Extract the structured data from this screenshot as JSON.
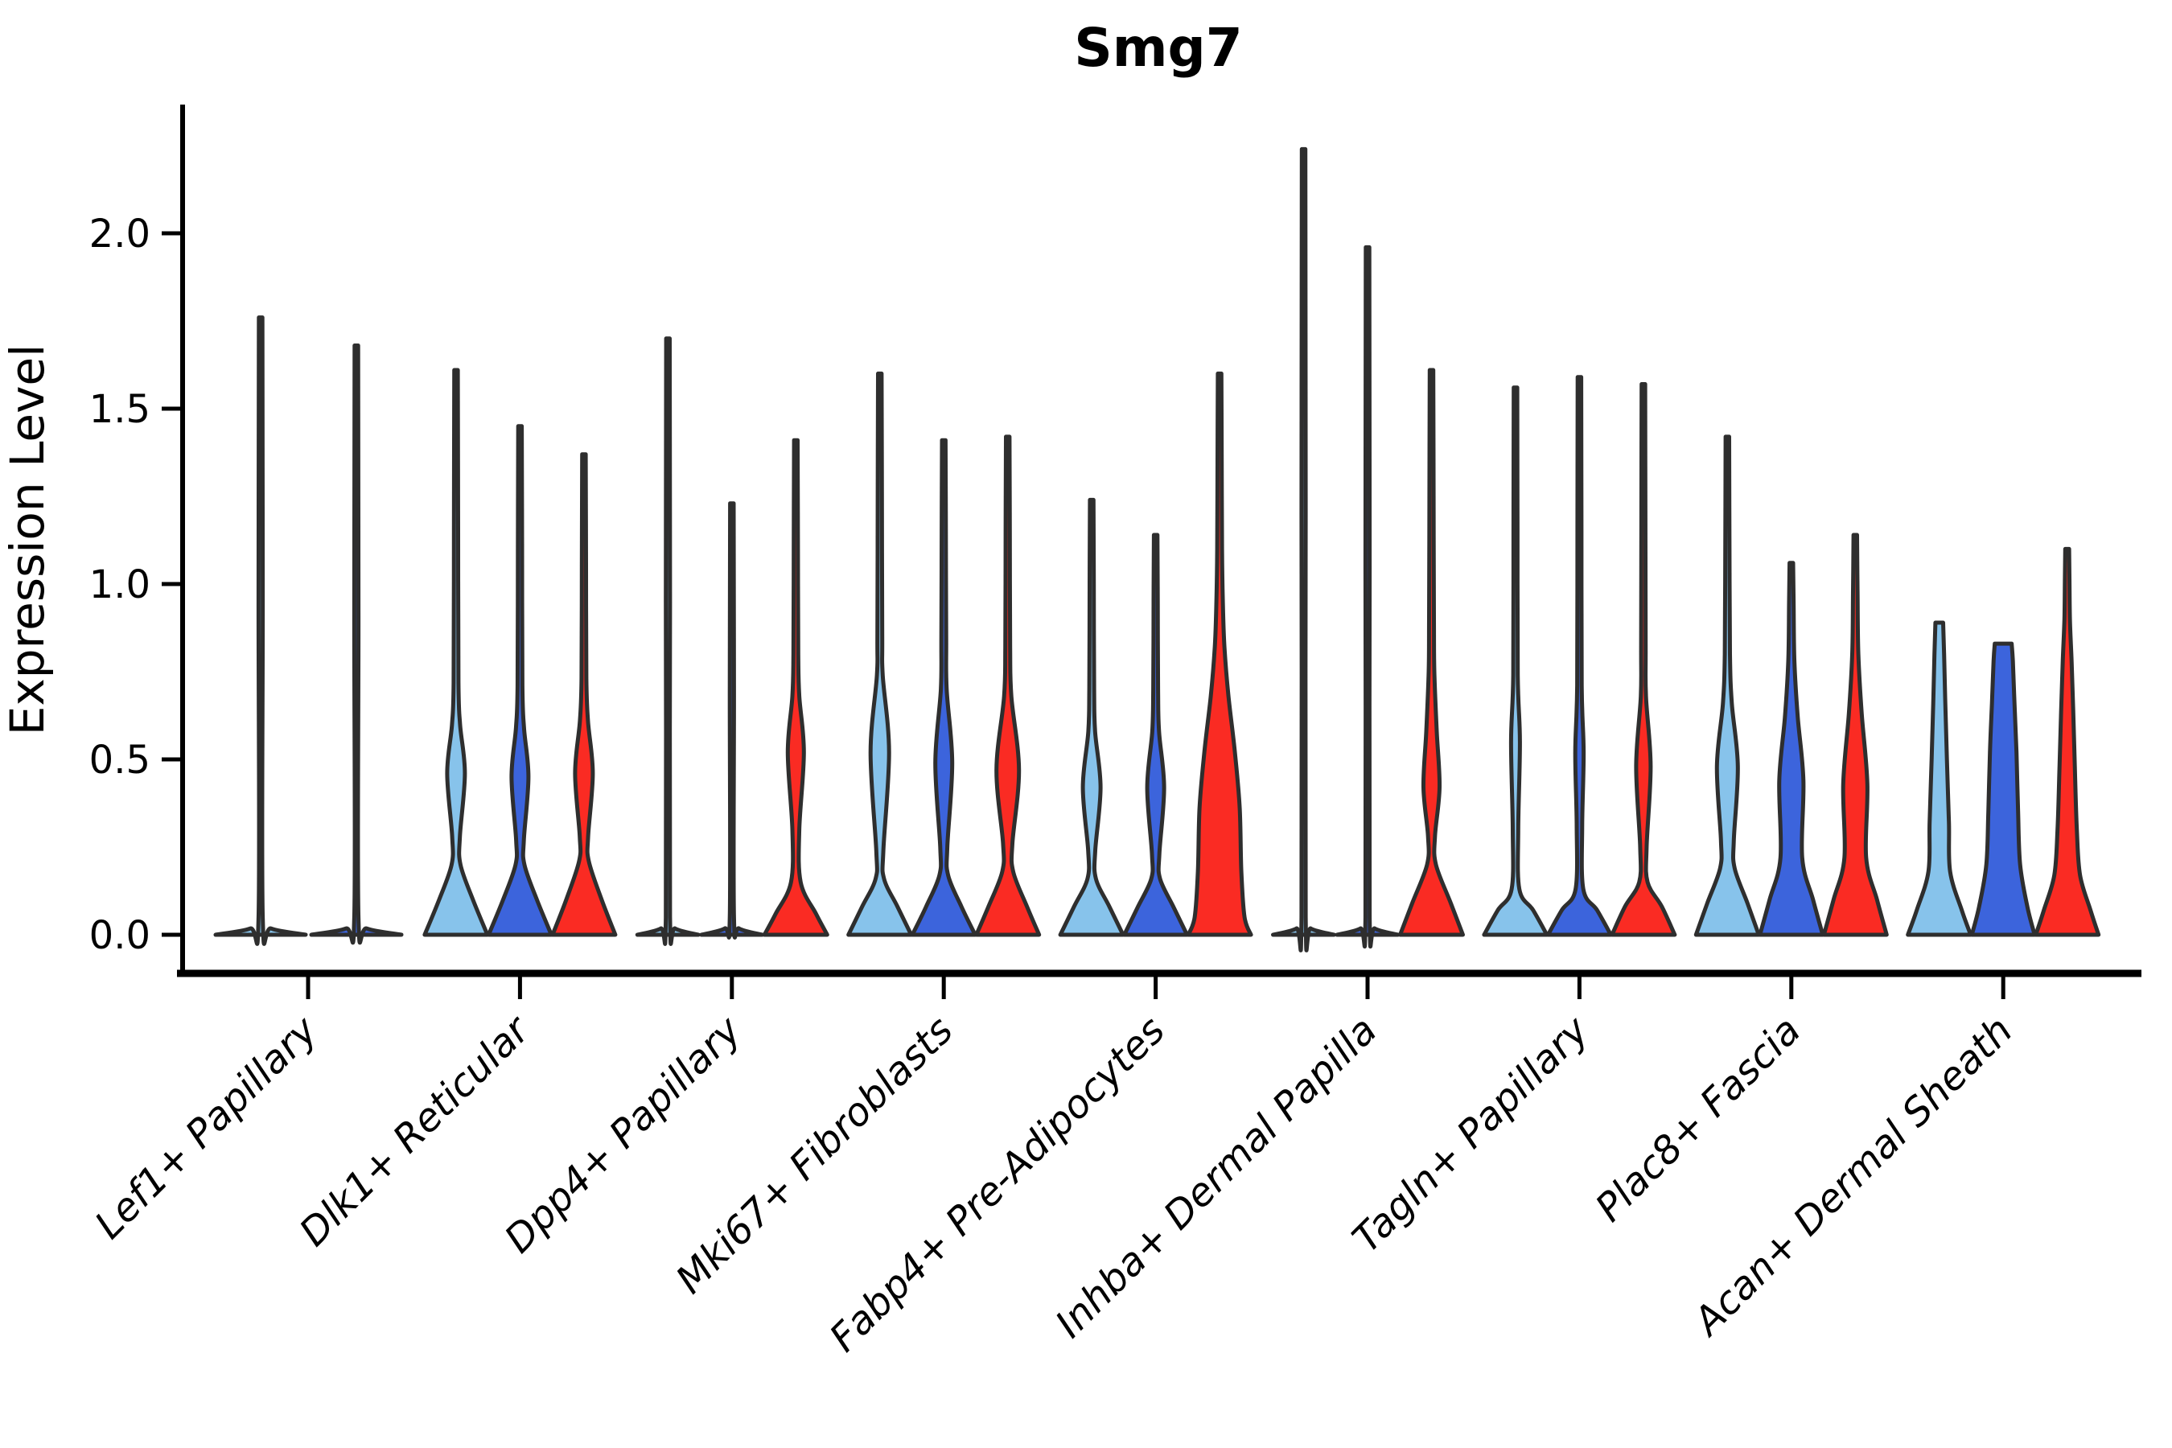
{
  "chart_data": {
    "type": "violin",
    "title": "Smg7",
    "ylabel": "Expression Level",
    "ytick_labels": [
      "0.0",
      "0.5",
      "1.0",
      "1.5",
      "2.0"
    ],
    "ytick_values": [
      0.0,
      0.5,
      1.0,
      1.5,
      2.0
    ],
    "ylim": [
      0.0,
      2.37
    ],
    "grid": "off",
    "legend": "none",
    "colors": {
      "light_blue": "#87C3EB",
      "dark_blue": "#3C64DC",
      "red": "#FA2B23",
      "outline": "#2e2e2e",
      "axis": "#000000"
    },
    "groups": [
      {
        "label": "Lef1+ Papillary",
        "violins": [
          {
            "color": "light_blue",
            "max": 1.76,
            "profile": [
              [
                0,
                56
              ],
              [
                0.018,
                13
              ],
              [
                0.05,
                2.6
              ],
              [
                0.95,
                2.6
              ],
              [
                1.76,
                2.2
              ]
            ]
          },
          {
            "color": "dark_blue",
            "max": 1.68,
            "profile": [
              [
                0,
                56
              ],
              [
                0.018,
                13
              ],
              [
                0.05,
                2.6
              ],
              [
                0.9,
                2.6
              ],
              [
                1.68,
                2.2
              ]
            ]
          }
        ]
      },
      {
        "label": "Dlk1+ Reticular",
        "violins": [
          {
            "color": "light_blue",
            "max": 1.61,
            "profile": [
              [
                0,
                39
              ],
              [
                0.1,
                21
              ],
              [
                0.2,
                5.5
              ],
              [
                0.28,
                4.8
              ],
              [
                0.46,
                11
              ],
              [
                0.6,
                5
              ],
              [
                0.72,
                3
              ],
              [
                1.15,
                2.6
              ],
              [
                1.61,
                2.2
              ]
            ]
          },
          {
            "color": "dark_blue",
            "max": 1.45,
            "profile": [
              [
                0,
                39
              ],
              [
                0.1,
                21
              ],
              [
                0.2,
                5.5
              ],
              [
                0.27,
                4.8
              ],
              [
                0.45,
                10.5
              ],
              [
                0.59,
                5
              ],
              [
                0.71,
                3
              ],
              [
                1.1,
                2.6
              ],
              [
                1.45,
                2.2
              ]
            ]
          },
          {
            "color": "red",
            "max": 1.37,
            "profile": [
              [
                0,
                39
              ],
              [
                0.1,
                22
              ],
              [
                0.21,
                6
              ],
              [
                0.28,
                5.2
              ],
              [
                0.46,
                11
              ],
              [
                0.61,
                5
              ],
              [
                0.73,
                3
              ],
              [
                1.05,
                2.6
              ],
              [
                1.37,
                2.2
              ]
            ]
          }
        ]
      },
      {
        "label": "Dpp4+ Papillary",
        "violins": [
          {
            "color": "light_blue",
            "max": 1.7,
            "profile": [
              [
                0,
                38
              ],
              [
                0.018,
                9
              ],
              [
                0.05,
                2.6
              ],
              [
                0.95,
                2.6
              ],
              [
                1.7,
                2.2
              ]
            ]
          },
          {
            "color": "dark_blue",
            "max": 1.23,
            "profile": [
              [
                0,
                38
              ],
              [
                0.018,
                9
              ],
              [
                0.05,
                2.6
              ],
              [
                0.7,
                2.6
              ],
              [
                1.23,
                2.2
              ]
            ]
          },
          {
            "color": "red",
            "max": 1.41,
            "profile": [
              [
                0,
                39
              ],
              [
                0.06,
                25
              ],
              [
                0.15,
                6
              ],
              [
                0.3,
                4.3
              ],
              [
                0.52,
                10
              ],
              [
                0.68,
                4.3
              ],
              [
                0.8,
                3
              ],
              [
                1.1,
                2.6
              ],
              [
                1.41,
                2.2
              ]
            ]
          }
        ]
      },
      {
        "label": "Mki67+ Fibroblasts",
        "violins": [
          {
            "color": "light_blue",
            "max": 1.6,
            "profile": [
              [
                0,
                39
              ],
              [
                0.08,
                22
              ],
              [
                0.16,
                5.2
              ],
              [
                0.24,
                4.4
              ],
              [
                0.52,
                11.5
              ],
              [
                0.74,
                3.6
              ],
              [
                0.85,
                3
              ],
              [
                1.25,
                2.6
              ],
              [
                1.6,
                2.2
              ]
            ]
          },
          {
            "color": "dark_blue",
            "max": 1.41,
            "profile": [
              [
                0,
                39
              ],
              [
                0.08,
                22
              ],
              [
                0.17,
                5.4
              ],
              [
                0.25,
                4.4
              ],
              [
                0.49,
                10.5
              ],
              [
                0.7,
                3.6
              ],
              [
                0.85,
                3
              ],
              [
                1.15,
                2.6
              ],
              [
                1.41,
                2.2
              ]
            ]
          },
          {
            "color": "red",
            "max": 1.42,
            "profile": [
              [
                0,
                39
              ],
              [
                0.08,
                24
              ],
              [
                0.18,
                6.8
              ],
              [
                0.26,
                5.8
              ],
              [
                0.47,
                14
              ],
              [
                0.68,
                4.5
              ],
              [
                0.82,
                3
              ],
              [
                1.15,
                2.6
              ],
              [
                1.42,
                2.2
              ]
            ]
          }
        ]
      },
      {
        "label": "Fabp4+ Pre-Adipocytes",
        "violins": [
          {
            "color": "light_blue",
            "max": 1.24,
            "profile": [
              [
                0,
                39
              ],
              [
                0.08,
                22
              ],
              [
                0.16,
                5.2
              ],
              [
                0.24,
                4.4
              ],
              [
                0.42,
                11
              ],
              [
                0.58,
                4.2
              ],
              [
                0.7,
                3
              ],
              [
                1.0,
                2.6
              ],
              [
                1.24,
                2.2
              ]
            ]
          },
          {
            "color": "dark_blue",
            "max": 1.14,
            "profile": [
              [
                0,
                39
              ],
              [
                0.08,
                22
              ],
              [
                0.16,
                5.4
              ],
              [
                0.23,
                4.6
              ],
              [
                0.42,
                10.5
              ],
              [
                0.58,
                4.2
              ],
              [
                0.7,
                3
              ],
              [
                0.95,
                2.6
              ],
              [
                1.14,
                2.2
              ]
            ]
          },
          {
            "color": "red",
            "max": 1.6,
            "profile": [
              [
                0,
                39
              ],
              [
                0.05,
                31
              ],
              [
                0.18,
                27
              ],
              [
                0.36,
                25
              ],
              [
                0.52,
                19
              ],
              [
                0.68,
                11
              ],
              [
                0.82,
                6
              ],
              [
                0.95,
                4
              ],
              [
                1.1,
                3
              ],
              [
                1.35,
                2.6
              ],
              [
                1.6,
                2.2
              ]
            ]
          }
        ]
      },
      {
        "label": "Inhba+ Dermal Papilla",
        "violins": [
          {
            "color": "light_blue",
            "max": 2.24,
            "profile": [
              [
                0,
                38
              ],
              [
                0.018,
                9
              ],
              [
                0.05,
                2.6
              ],
              [
                1.2,
                2.6
              ],
              [
                2.24,
                2.2
              ]
            ]
          },
          {
            "color": "dark_blue",
            "max": 1.96,
            "profile": [
              [
                0,
                38
              ],
              [
                0.018,
                9
              ],
              [
                0.05,
                2.6
              ],
              [
                1.05,
                2.6
              ],
              [
                1.96,
                2.2
              ]
            ]
          },
          {
            "color": "red",
            "max": 1.61,
            "profile": [
              [
                0,
                39
              ],
              [
                0.09,
                24
              ],
              [
                0.2,
                5.5
              ],
              [
                0.28,
                4.3
              ],
              [
                0.42,
                10
              ],
              [
                0.58,
                6.5
              ],
              [
                0.75,
                3.5
              ],
              [
                0.9,
                3
              ],
              [
                1.25,
                2.6
              ],
              [
                1.61,
                2.2
              ]
            ]
          }
        ]
      },
      {
        "label": "Tagln+ Papillary",
        "violins": [
          {
            "color": "light_blue",
            "max": 1.56,
            "profile": [
              [
                0,
                39
              ],
              [
                0.07,
                22
              ],
              [
                0.13,
                4.8
              ],
              [
                0.3,
                3.4
              ],
              [
                0.55,
                5.5
              ],
              [
                0.74,
                2.8
              ],
              [
                1.15,
                2.5
              ],
              [
                1.56,
                2.2
              ]
            ]
          },
          {
            "color": "dark_blue",
            "max": 1.59,
            "profile": [
              [
                0,
                39
              ],
              [
                0.07,
                22
              ],
              [
                0.13,
                4.8
              ],
              [
                0.31,
                3.4
              ],
              [
                0.52,
                5.2
              ],
              [
                0.71,
                2.8
              ],
              [
                1.15,
                2.5
              ],
              [
                1.59,
                2.2
              ]
            ]
          },
          {
            "color": "red",
            "max": 1.57,
            "profile": [
              [
                0,
                39
              ],
              [
                0.08,
                23
              ],
              [
                0.15,
                5.2
              ],
              [
                0.25,
                4.0
              ],
              [
                0.48,
                9
              ],
              [
                0.68,
                3.2
              ],
              [
                0.82,
                2.8
              ],
              [
                1.2,
                2.5
              ],
              [
                1.57,
                2.2
              ]
            ]
          }
        ]
      },
      {
        "label": "Plac8+ Fascia",
        "violins": [
          {
            "color": "light_blue",
            "max": 1.42,
            "profile": [
              [
                0,
                39
              ],
              [
                0.09,
                25
              ],
              [
                0.19,
                9
              ],
              [
                0.27,
                8
              ],
              [
                0.48,
                13
              ],
              [
                0.66,
                5.5
              ],
              [
                0.8,
                3.2
              ],
              [
                1.1,
                2.6
              ],
              [
                1.42,
                2.2
              ]
            ]
          },
          {
            "color": "dark_blue",
            "max": 1.06,
            "profile": [
              [
                0,
                39
              ],
              [
                0.1,
                27
              ],
              [
                0.22,
                13.5
              ],
              [
                0.44,
                15
              ],
              [
                0.62,
                8
              ],
              [
                0.78,
                3.8
              ],
              [
                0.95,
                2.8
              ],
              [
                1.06,
                2.2
              ]
            ]
          },
          {
            "color": "red",
            "max": 1.14,
            "profile": [
              [
                0,
                39
              ],
              [
                0.1,
                27
              ],
              [
                0.22,
                13.5
              ],
              [
                0.43,
                15
              ],
              [
                0.63,
                8
              ],
              [
                0.8,
                3.8
              ],
              [
                0.98,
                2.8
              ],
              [
                1.14,
                2.2
              ]
            ]
          }
        ]
      },
      {
        "label": "Acan+ Dermal Sheath",
        "violins": [
          {
            "color": "light_blue",
            "max": 0.89,
            "profile": [
              [
                0,
                39
              ],
              [
                0.07,
                28
              ],
              [
                0.18,
                13.5
              ],
              [
                0.32,
                12
              ],
              [
                0.5,
                9.5
              ],
              [
                0.66,
                7.5
              ],
              [
                0.8,
                6
              ],
              [
                0.89,
                4.8
              ]
            ]
          },
          {
            "color": "dark_blue",
            "max": 0.83,
            "profile": [
              [
                0,
                39
              ],
              [
                0.08,
                30
              ],
              [
                0.2,
                21
              ],
              [
                0.35,
                18.5
              ],
              [
                0.52,
                16.5
              ],
              [
                0.66,
                14
              ],
              [
                0.78,
                12
              ],
              [
                0.83,
                10.5
              ]
            ]
          },
          {
            "color": "red",
            "max": 1.1,
            "profile": [
              [
                0,
                39
              ],
              [
                0.07,
                29
              ],
              [
                0.17,
                16
              ],
              [
                0.3,
                12
              ],
              [
                0.48,
                9.5
              ],
              [
                0.64,
                7.5
              ],
              [
                0.78,
                5.5
              ],
              [
                0.9,
                3.4
              ],
              [
                1.02,
                2.8
              ],
              [
                1.1,
                2.4
              ]
            ]
          }
        ]
      }
    ]
  }
}
